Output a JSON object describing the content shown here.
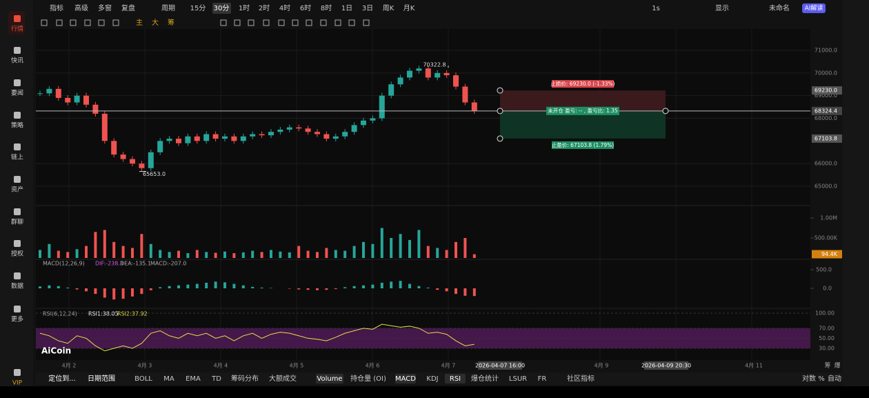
{
  "sidebar": [
    "行情",
    "快讯",
    "要闻",
    "策略",
    "链上",
    "资产",
    "群聊",
    "授权",
    "数据",
    "更多",
    "VIP"
  ],
  "top_bar": {
    "left": [
      "指标",
      "高级",
      "多窗",
      "复盘"
    ],
    "period_label": "周期",
    "periods": [
      "15分",
      "30分",
      "1时",
      "2时",
      "4时",
      "6时",
      "8时",
      "1日",
      "3日",
      "周K",
      "月K"
    ],
    "active_period": 1,
    "right": [
      "1s",
      "显示",
      "未命名",
      "AI解读"
    ]
  },
  "toolbar": [
    "主",
    "大",
    "筹"
  ],
  "chart": {
    "price_ticks": [
      {
        "value": 71000,
        "label": "71000.0"
      },
      {
        "value": 70000,
        "label": "70000.0"
      },
      {
        "value": 69000,
        "label": "69000.0"
      },
      {
        "value": 68000,
        "label": "68000.0"
      },
      {
        "value": 66000,
        "label": "66000.0"
      },
      {
        "value": 65000,
        "label": "65000.0"
      }
    ],
    "high": {
      "value": 70322.8,
      "label": "70322.8"
    },
    "low": {
      "value": 65653.0,
      "label": "65653.0"
    },
    "order": {
      "stop": {
        "value": 69230.0,
        "label": "69230.0",
        "text": "止损价: 69230.0 (-1.33%)"
      },
      "current": {
        "value": 68324.4,
        "label": "68324.4"
      },
      "take": {
        "value": 67103.8,
        "label": "67103.8",
        "text": "止盈价: 67103.8 (1.79%)"
      },
      "status": "未开仓 盈亏: -- , 盈亏比: 1.35"
    },
    "closes": [
      69100,
      69300,
      68900,
      68700,
      69000,
      68600,
      68200,
      67000,
      66400,
      66200,
      66000,
      65800,
      66500,
      67000,
      67100,
      66900,
      67200,
      67000,
      67300,
      67100,
      67200,
      67000,
      67200,
      67300,
      67250,
      67400,
      67500,
      67600,
      67550,
      67400,
      67300,
      67100,
      67200,
      67400,
      67700,
      67900,
      68000,
      69000,
      69500,
      69800,
      70100,
      70200,
      69800,
      70000,
      69900,
      69400,
      68700,
      68324.4
    ],
    "volumes": [
      200,
      350,
      180,
      150,
      220,
      300,
      650,
      700,
      400,
      300,
      250,
      600,
      350,
      200,
      150,
      180,
      120,
      200,
      150,
      130,
      160,
      120,
      140,
      180,
      150,
      200,
      160,
      140,
      300,
      180,
      150,
      250,
      200,
      180,
      300,
      400,
      350,
      750,
      500,
      600,
      450,
      700,
      300,
      250,
      200,
      400,
      500,
      94.4
    ],
    "volume_ticks": [
      {
        "value": 1000,
        "label": "1.00M"
      },
      {
        "value": 500,
        "label": "500.00K"
      }
    ],
    "volume_last": {
      "value": 94.4,
      "label": "94.4K"
    },
    "macd_legend": [
      "MACD(12,26,9)",
      "DIF:-238.3",
      "DEA:-135.1",
      "MACD:-207.0"
    ],
    "macd_hist": [
      50,
      80,
      60,
      20,
      -30,
      -80,
      -150,
      -250,
      -300,
      -280,
      -220,
      -150,
      -50,
      30,
      60,
      80,
      100,
      120,
      150,
      180,
      160,
      120,
      80,
      40,
      20,
      10,
      0,
      -10,
      -30,
      -40,
      -50,
      -40,
      -20,
      30,
      60,
      80,
      100,
      150,
      180,
      200,
      120,
      60,
      20,
      -40,
      -80,
      -150,
      -200,
      -207
    ],
    "macd_ticks": [
      {
        "value": 500,
        "label": "500.0"
      },
      {
        "value": 0,
        "label": "0.0"
      }
    ],
    "rsi_legend": [
      "RSI(6,12,24)",
      "RSI1:38.05",
      "RSI2:37.92"
    ],
    "rsi": [
      60,
      55,
      45,
      40,
      55,
      50,
      35,
      25,
      30,
      35,
      30,
      40,
      60,
      65,
      55,
      50,
      60,
      55,
      60,
      50,
      55,
      45,
      55,
      60,
      50,
      58,
      62,
      60,
      55,
      50,
      48,
      45,
      52,
      60,
      65,
      70,
      68,
      78,
      75,
      72,
      74,
      70,
      60,
      62,
      58,
      45,
      35,
      38.05
    ],
    "rsi_ticks": [
      {
        "value": 100,
        "label": "100.00"
      },
      {
        "value": 70,
        "label": "70.00"
      },
      {
        "value": 50,
        "label": "50.00"
      },
      {
        "value": 30,
        "label": "30.00"
      }
    ],
    "x_labels": [
      "4月 2",
      "4月 3",
      "4月 4",
      "4月 5",
      "4月 6",
      "4月 7",
      "4月 9",
      "4月 11"
    ],
    "crosshair": [
      "2026-04-07 16:00",
      "2026-04-09 20:30"
    ],
    "logo": "AiCoin",
    "corner": [
      "筹",
      "爆"
    ]
  },
  "bottom_bar": {
    "left": [
      "定位到...",
      "日期范围"
    ],
    "indicators": [
      "BOLL",
      "MA",
      "EMA",
      "TD",
      "筹码分布",
      "大额成交",
      "Volume",
      "持仓量 (OI)",
      "MACD",
      "KDJ",
      "RSI",
      "爆仓统计",
      "LSUR",
      "FR",
      "社区指标"
    ],
    "right": [
      "对数",
      "%",
      "自动"
    ]
  }
}
